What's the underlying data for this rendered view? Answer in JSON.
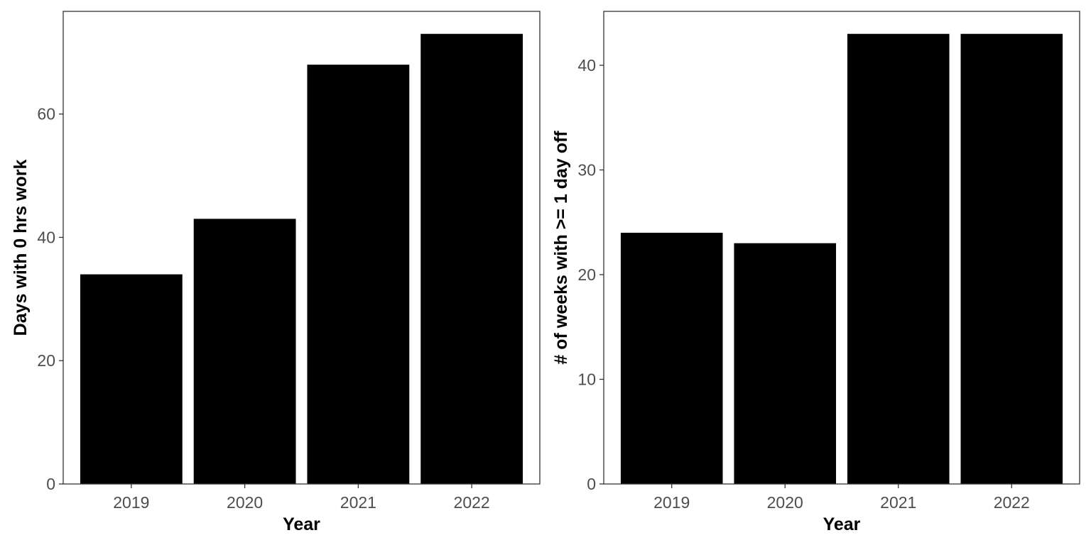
{
  "colors": {
    "bar": "#000000",
    "tick_text": "#4d4d4d",
    "axis_title": "#000000",
    "border": "#333333"
  },
  "chart_data": [
    {
      "type": "bar",
      "categories": [
        "2019",
        "2020",
        "2021",
        "2022"
      ],
      "values": [
        34,
        43,
        68,
        73
      ],
      "xlabel": "Year",
      "ylabel": "Days with 0 hrs work",
      "ylim": [
        0,
        76.65
      ],
      "yticks": [
        0,
        20,
        40,
        60
      ],
      "grid": false,
      "legend": "none"
    },
    {
      "type": "bar",
      "categories": [
        "2019",
        "2020",
        "2021",
        "2022"
      ],
      "values": [
        24,
        23,
        43,
        43
      ],
      "xlabel": "Year",
      "ylabel": "# of weeks with >= 1 day off",
      "ylim": [
        0,
        45.15
      ],
      "yticks": [
        0,
        10,
        20,
        30,
        40
      ],
      "grid": false,
      "legend": "none"
    }
  ]
}
